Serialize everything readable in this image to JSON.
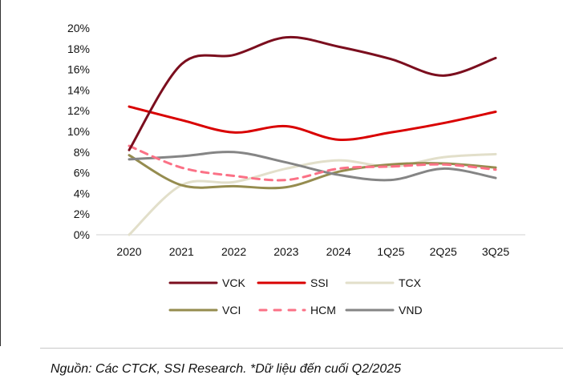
{
  "chart_data": {
    "type": "line",
    "title": "",
    "xlabel": "",
    "ylabel": "",
    "categories": [
      "2020",
      "2021",
      "2022",
      "2023",
      "2024",
      "1Q25",
      "2Q25",
      "3Q25"
    ],
    "ylim": [
      0,
      20
    ],
    "yticks": [
      "0%",
      "2%",
      "4%",
      "6%",
      "8%",
      "10%",
      "12%",
      "14%",
      "16%",
      "18%",
      "20%"
    ],
    "legend_position": "bottom",
    "grid": false,
    "series": [
      {
        "name": "VCK",
        "color": "#7b0e1e",
        "dashed": false,
        "values": [
          8.2,
          16.5,
          17.4,
          19.1,
          18.2,
          17.0,
          15.4,
          17.1
        ]
      },
      {
        "name": "SSI",
        "color": "#d90000",
        "dashed": false,
        "values": [
          12.4,
          11.1,
          9.9,
          10.5,
          9.2,
          9.9,
          10.8,
          11.9
        ]
      },
      {
        "name": "TCX",
        "color": "#e2dfca",
        "dashed": false,
        "values": [
          0,
          4.8,
          5.1,
          6.4,
          7.2,
          6.6,
          7.5,
          7.8
        ]
      },
      {
        "name": "VCI",
        "color": "#958c4f",
        "dashed": false,
        "values": [
          7.7,
          4.8,
          4.7,
          4.6,
          6.1,
          6.8,
          6.9,
          6.5
        ]
      },
      {
        "name": "HCM",
        "color": "#fb7186",
        "dashed": true,
        "values": [
          8.6,
          6.5,
          5.7,
          5.3,
          6.4,
          6.6,
          6.8,
          6.3
        ]
      },
      {
        "name": "VND",
        "color": "#858585",
        "dashed": false,
        "values": [
          7.3,
          7.6,
          8.0,
          7.0,
          5.8,
          5.3,
          6.4,
          5.5
        ]
      }
    ]
  },
  "footer": "Nguồn: Các CTCK, SSI Research. *Dữ liệu đến cuối Q2/2025"
}
